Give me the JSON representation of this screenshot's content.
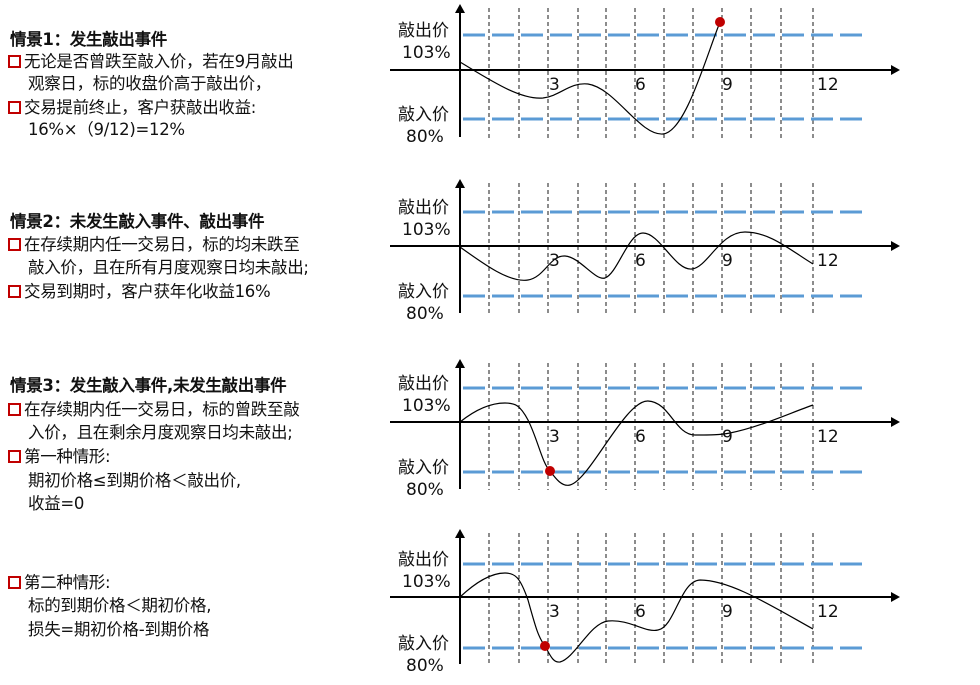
{
  "scenarios": [
    {
      "title": "情景1：发生敲出事件",
      "lines": [
        {
          "bullet": true,
          "text": "无论是否曾跌至敲入价，若在9月敲出"
        },
        {
          "bullet": false,
          "text": "观察日，标的收盘价高于敲出价，"
        },
        {
          "bullet": true,
          "text": "交易提前终止，客户获敲出收益:"
        },
        {
          "bullet": false,
          "text": "16%×（9/12)=12%"
        }
      ]
    },
    {
      "title": "情景2：未发生敲入事件、敲出事件",
      "lines": [
        {
          "bullet": true,
          "text": "在存续期内任一交易日，标的均未跌至"
        },
        {
          "bullet": false,
          "text": "敲入价，且在所有月度观察日均未敲出;"
        },
        {
          "bullet": true,
          "text": "交易到期时，客户获年化收益16%"
        }
      ]
    },
    {
      "title": "情景3：发生敲入事件,未发生敲出事件",
      "lines": [
        {
          "bullet": true,
          "text": "在存续期内任一交易日，标的曾跌至敲"
        },
        {
          "bullet": false,
          "text": "入价，且在剩余月度观察日均未敲出;"
        },
        {
          "bullet": true,
          "text": "第一种情形:"
        },
        {
          "bullet": false,
          "text": "期初价格≤到期价格＜敲出价,"
        },
        {
          "bullet": false,
          "text": "收益=0"
        }
      ]
    },
    {
      "title": "",
      "lines": [
        {
          "bullet": true,
          "text": "第二种情形:"
        },
        {
          "bullet": false,
          "text": "标的到期价格＜期初价格,"
        },
        {
          "bullet": false,
          "text": "损失=期初价格-到期价格"
        }
      ]
    }
  ],
  "chart_labels": {
    "knock_out_label": "敲出价",
    "knock_out_value": "103%",
    "knock_in_label": "敲入价",
    "knock_in_value": "80%",
    "month_ticks": [
      "3",
      "6",
      "9",
      "12"
    ]
  },
  "colors": {
    "barrier_line": "#5b9bd5",
    "event_dot": "#c00000",
    "bullet": "#c00000"
  },
  "events": [
    {
      "scenario": 1,
      "type": "knock-out",
      "month": "9"
    },
    {
      "scenario": 2,
      "type": "none"
    },
    {
      "scenario": 3,
      "type": "knock-in"
    },
    {
      "scenario": 4,
      "type": "knock-in"
    }
  ]
}
